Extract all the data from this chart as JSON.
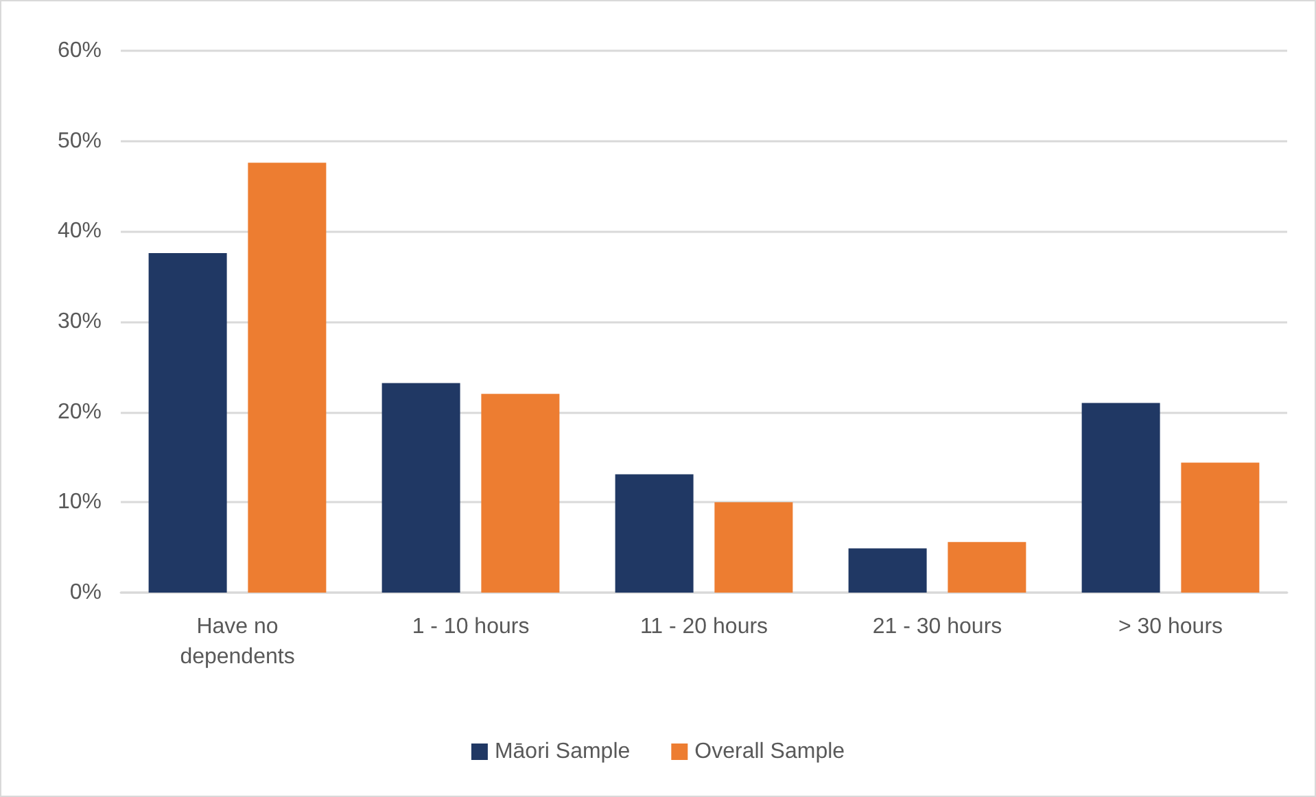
{
  "chart_data": {
    "type": "bar",
    "categories": [
      "Have no\ndependents",
      "1 - 10 hours",
      "11 - 20 hours",
      "21 - 30 hours",
      "> 30 hours"
    ],
    "series": [
      {
        "name": "Māori Sample",
        "color": "#203864",
        "values": [
          37.6,
          23.2,
          13.1,
          4.9,
          21.0
        ]
      },
      {
        "name": "Overall Sample",
        "color": "#ed7d31",
        "values": [
          47.6,
          22.0,
          10.0,
          5.6,
          14.4
        ]
      }
    ],
    "ylim": [
      0,
      60
    ],
    "yticks": [
      {
        "value": 0,
        "label": "0%"
      },
      {
        "value": 10,
        "label": "10%"
      },
      {
        "value": 20,
        "label": "20%"
      },
      {
        "value": 30,
        "label": "30%"
      },
      {
        "value": 40,
        "label": "40%"
      },
      {
        "value": 50,
        "label": "50%"
      },
      {
        "value": 60,
        "label": "60%"
      }
    ],
    "grid": "y",
    "legend": "bottom"
  }
}
